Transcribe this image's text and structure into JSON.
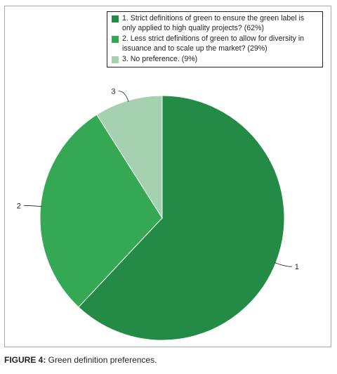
{
  "chart_data": {
    "type": "pie",
    "categories": [
      "1",
      "2",
      "3"
    ],
    "values": [
      62,
      29,
      9
    ],
    "colors": [
      "#238b45",
      "#34a853",
      "#a6d1b0"
    ],
    "legend": [
      "1. Strict definitions of green to ensure the green label is only applied to high quality projects? (62%)",
      "2. Less strict definitions of green to allow for diversity in issuance and to scale up the market? (29%)",
      "3. No preference. (9%)"
    ],
    "legend_position": "top-right",
    "slice_labels": [
      "1",
      "2",
      "3"
    ]
  },
  "caption": {
    "label": "FIGURE 4:",
    "text": " Green definition preferences."
  }
}
